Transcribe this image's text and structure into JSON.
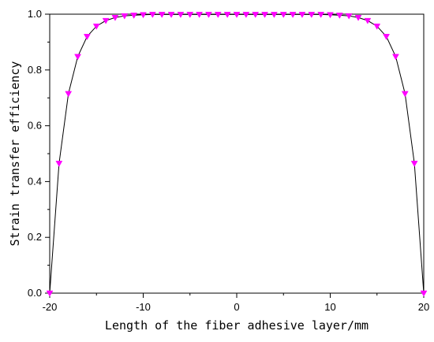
{
  "chart_data": {
    "type": "line",
    "title": "",
    "xlabel": "Length of the fiber adhesive layer/mm",
    "ylabel": "Strain transfer efficiency",
    "xlim": [
      -20,
      20
    ],
    "ylim": [
      0.0,
      1.0
    ],
    "xticks": [
      "-20",
      "-10",
      "0",
      "10",
      "20"
    ],
    "yticks": [
      "0.0",
      "0.2",
      "0.4",
      "0.6",
      "0.8",
      "1.0"
    ],
    "grid": false,
    "legend": "none",
    "colors": {
      "line": "#000000",
      "marker": "#ff00ff"
    },
    "series": [
      {
        "marker": "down-triangle",
        "x": [
          -20,
          -19,
          -18,
          -17,
          -16,
          -15,
          -14,
          -13,
          -12,
          -11,
          -10,
          -9,
          -8,
          -7,
          -6,
          -5,
          -4,
          -3,
          -2,
          -1,
          0,
          1,
          2,
          3,
          4,
          5,
          6,
          7,
          8,
          9,
          10,
          11,
          12,
          13,
          14,
          15,
          16,
          17,
          18,
          19,
          20
        ],
        "y": [
          0.0,
          0.465,
          0.715,
          0.848,
          0.92,
          0.957,
          0.977,
          0.988,
          0.994,
          0.996,
          0.998,
          0.999,
          0.999,
          0.999,
          0.999,
          0.999,
          0.999,
          0.999,
          0.999,
          0.999,
          0.999,
          0.999,
          0.999,
          0.999,
          0.999,
          0.999,
          0.999,
          0.999,
          0.999,
          0.999,
          0.998,
          0.996,
          0.994,
          0.988,
          0.977,
          0.957,
          0.92,
          0.848,
          0.715,
          0.465,
          0.0
        ]
      }
    ]
  }
}
